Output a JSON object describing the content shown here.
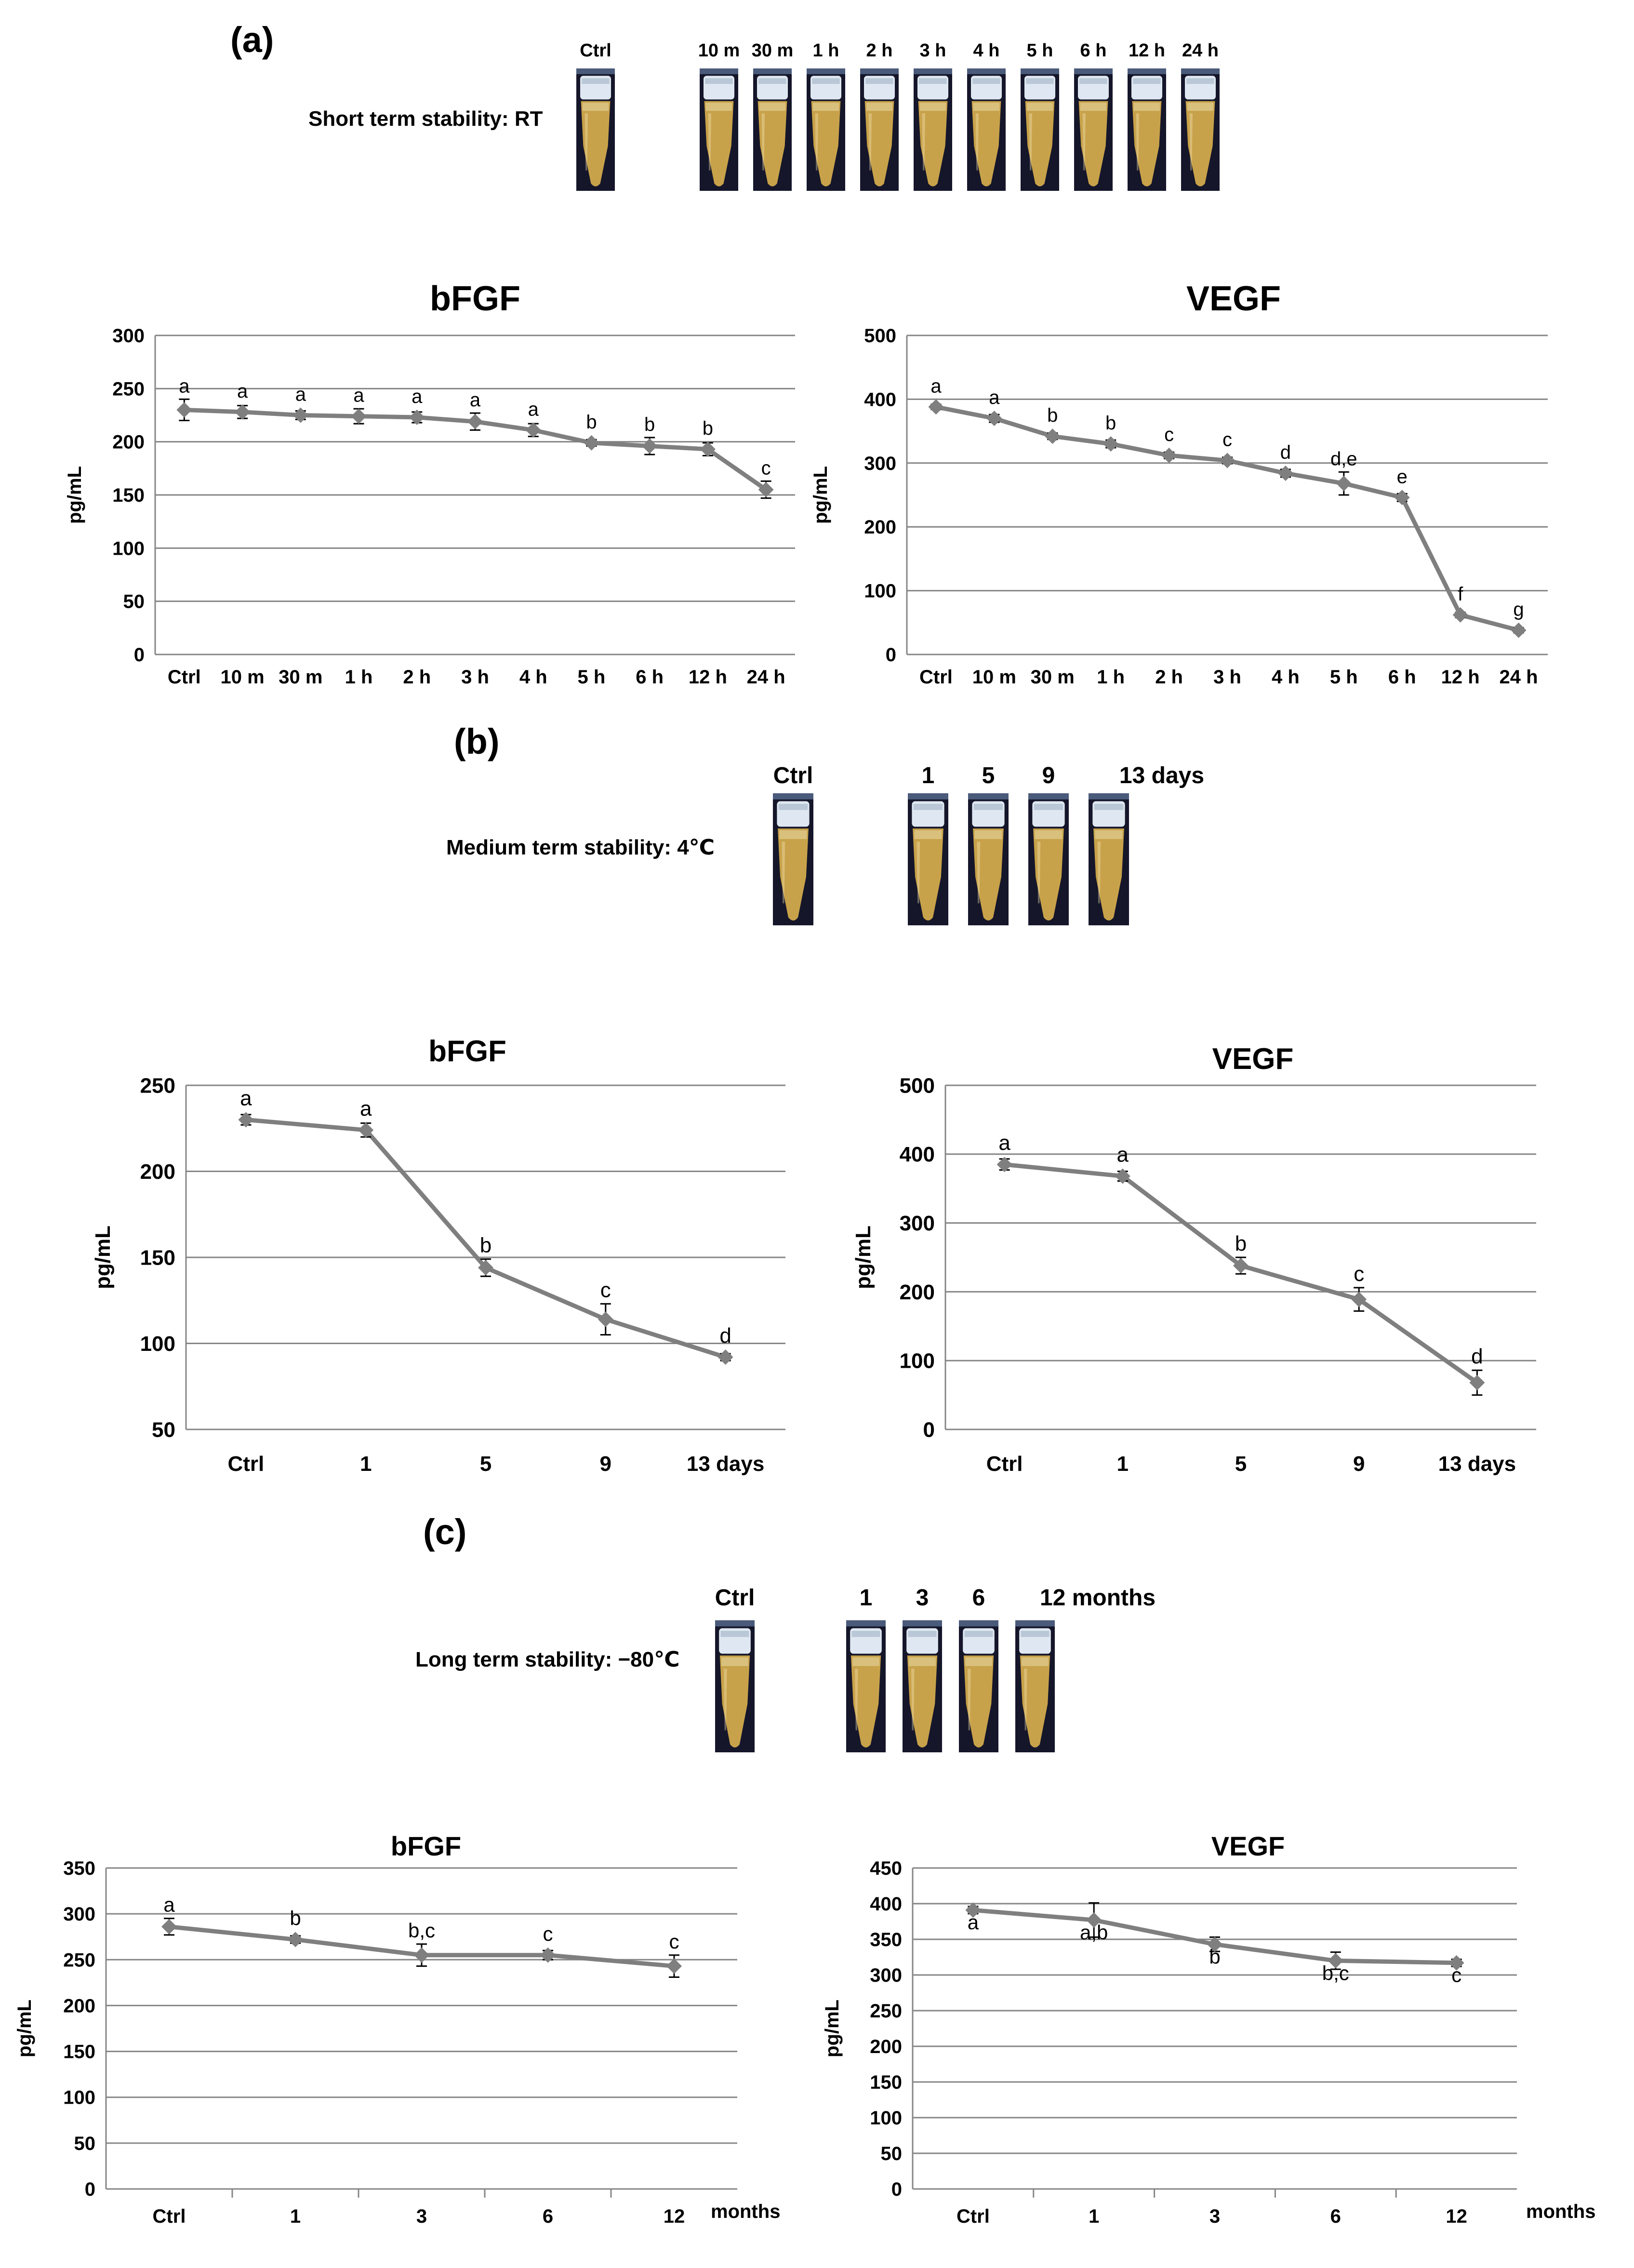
{
  "panels": [
    {
      "label": "(a)",
      "stability_label": "Short term stability: RT",
      "ctrl_label": "Ctrl",
      "tube_labels": [
        "10 m",
        "30 m",
        "1 h",
        "2 h",
        "3 h",
        "4 h",
        "5 h",
        "6 h",
        "12 h",
        "24 h"
      ]
    },
    {
      "label": "(b)",
      "stability_label": "Medium term stability: 4℃",
      "ctrl_label": "Ctrl",
      "tube_labels": [
        "1",
        "5",
        "9",
        "13 days"
      ]
    },
    {
      "label": "(c)",
      "stability_label": "Long term stability: −80℃",
      "ctrl_label": "Ctrl",
      "tube_labels": [
        "1",
        "3",
        "6",
        "12 months"
      ]
    }
  ],
  "colors": {
    "series": "#7f7f7f",
    "grid": "#868686",
    "tube_body": "#c8a24a",
    "tube_bg": "#15162a",
    "cap": "#dfe8f2"
  },
  "chart_data": [
    {
      "id": "a-bfgf",
      "type": "line",
      "title": "bFGF",
      "ylabel": "pg/mL",
      "categories": [
        "Ctrl",
        "10 m",
        "30 m",
        "1 h",
        "2 h",
        "3 h",
        "4 h",
        "5 h",
        "6 h",
        "12 h",
        "24 h"
      ],
      "values": [
        230,
        228,
        225,
        224,
        223,
        219,
        211,
        199,
        196,
        193,
        155
      ],
      "errors": [
        10,
        6,
        4,
        7,
        5,
        8,
        6,
        3,
        8,
        6,
        8
      ],
      "labels": [
        "a",
        "a",
        "a",
        "a",
        "a",
        "a",
        "a",
        "b",
        "b",
        "b",
        "c"
      ],
      "ylim": [
        0,
        300
      ],
      "yticks": [
        0,
        50,
        100,
        150,
        200,
        250,
        300
      ],
      "grid": true,
      "legend": "none"
    },
    {
      "id": "a-vegf",
      "type": "line",
      "title": "VEGF",
      "ylabel": "pg/mL",
      "categories": [
        "Ctrl",
        "10 m",
        "30 m",
        "1 h",
        "2 h",
        "3 h",
        "4 h",
        "5 h",
        "6 h",
        "12 h",
        "24 h"
      ],
      "values": [
        388,
        370,
        342,
        330,
        312,
        304,
        284,
        268,
        246,
        62,
        38
      ],
      "errors": [
        4,
        6,
        5,
        6,
        5,
        5,
        6,
        18,
        6,
        4,
        4
      ],
      "labels": [
        "a",
        "a",
        "b",
        "b",
        "c",
        "c",
        "d",
        "d,e",
        "e",
        "f",
        "g"
      ],
      "ylim": [
        0,
        500
      ],
      "yticks": [
        0,
        100,
        200,
        300,
        400,
        500
      ],
      "grid": true,
      "legend": "none"
    },
    {
      "id": "b-bfgf",
      "type": "line",
      "title": "bFGF",
      "ylabel": "pg/mL",
      "categories": [
        "Ctrl",
        "1",
        "5",
        "9",
        "13 days"
      ],
      "values": [
        230,
        224,
        144,
        114,
        92
      ],
      "errors": [
        3,
        4,
        5,
        9,
        2
      ],
      "labels": [
        "a",
        "a",
        "b",
        "c",
        "d"
      ],
      "ylim": [
        50,
        250
      ],
      "yticks": [
        50,
        100,
        150,
        200,
        250
      ],
      "grid": true,
      "legend": "none"
    },
    {
      "id": "b-vegf",
      "type": "line",
      "title": "VEGF",
      "ylabel": "pg/mL",
      "categories": [
        "Ctrl",
        "1",
        "5",
        "9",
        "13 days"
      ],
      "values": [
        385,
        368,
        238,
        189,
        68
      ],
      "errors": [
        8,
        7,
        12,
        17,
        18
      ],
      "labels": [
        "a",
        "a",
        "b",
        "c",
        "d"
      ],
      "ylim": [
        0,
        500
      ],
      "yticks": [
        0,
        100,
        200,
        300,
        400,
        500
      ],
      "grid": true,
      "legend": "none"
    },
    {
      "id": "c-bfgf",
      "type": "line",
      "title": "bFGF",
      "ylabel": "pg/mL",
      "categories": [
        "Ctrl",
        "1",
        "3",
        "6",
        "12"
      ],
      "x_unit": "months",
      "values": [
        286,
        272,
        255,
        255,
        243
      ],
      "errors": [
        9,
        4,
        12,
        5,
        12
      ],
      "labels": [
        "a",
        "b",
        "b,c",
        "c",
        "c"
      ],
      "ylim": [
        0,
        350
      ],
      "yticks": [
        0,
        50,
        100,
        150,
        200,
        250,
        300,
        350
      ],
      "grid": true,
      "legend": "none"
    },
    {
      "id": "c-vegf",
      "type": "line",
      "title": "VEGF",
      "ylabel": "pg/mL",
      "categories": [
        "Ctrl",
        "1",
        "3",
        "6",
        "12"
      ],
      "x_unit": "months",
      "values": [
        391,
        377,
        343,
        320,
        317
      ],
      "errors": [
        5,
        24,
        10,
        12,
        5
      ],
      "labels": [
        "a",
        "a,b",
        "b",
        "b,c",
        "c"
      ],
      "ylim": [
        0,
        450
      ],
      "yticks": [
        0,
        50,
        100,
        150,
        200,
        250,
        300,
        350,
        400,
        450
      ],
      "grid": true,
      "legend": "none"
    }
  ]
}
